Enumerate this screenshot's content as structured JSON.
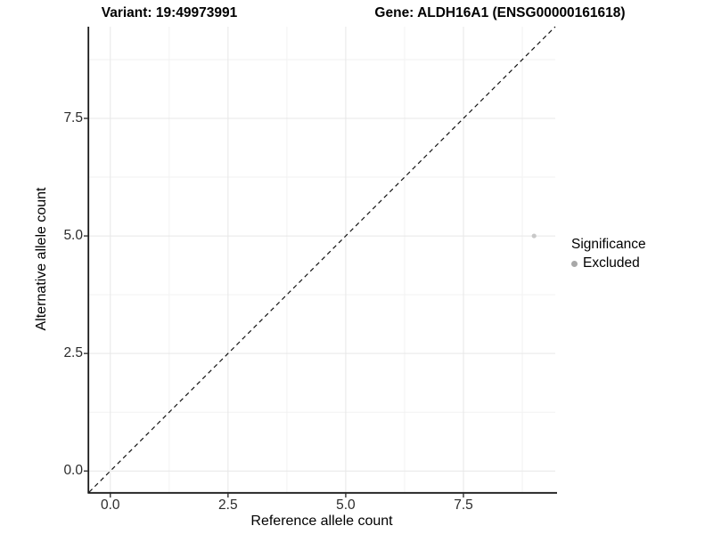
{
  "chart_data": {
    "type": "scatter",
    "title_left": "Variant: 19:49973991",
    "title_right": "Gene: ALDH16A1 (ENSG00000161618)",
    "xlabel": "Reference allele count",
    "ylabel": "Alternative allele count",
    "xlim": [
      -0.45,
      9.45
    ],
    "ylim": [
      -0.45,
      9.45
    ],
    "x_ticks": [
      0.0,
      2.5,
      5.0,
      7.5
    ],
    "y_ticks": [
      0.0,
      2.5,
      5.0,
      7.5
    ],
    "x_tick_labels": [
      "0.0",
      "2.5",
      "5.0",
      "7.5"
    ],
    "y_tick_labels": [
      "0.0",
      "2.5",
      "5.0",
      "7.5"
    ],
    "minor_ticks": [
      1.25,
      3.75,
      6.25,
      8.75
    ],
    "grid": true,
    "identity_line": {
      "style": "dashed",
      "from": [
        -0.45,
        -0.45
      ],
      "to": [
        9.45,
        9.45
      ]
    },
    "points": [
      {
        "x": 9,
        "y": 5,
        "series": "Excluded"
      }
    ],
    "legend": {
      "title": "Significance",
      "position": "right",
      "items": [
        {
          "label": "Excluded",
          "color": "#a8a8a8"
        }
      ]
    },
    "colors": {
      "point": "#c8c8c8",
      "major_grid": "#e7e7e7",
      "minor_grid": "#f2f2f2",
      "axis_line": "#1a1a1a",
      "tick_mark": "#333333",
      "identity_line": "#111111",
      "background": "#ffffff"
    }
  }
}
